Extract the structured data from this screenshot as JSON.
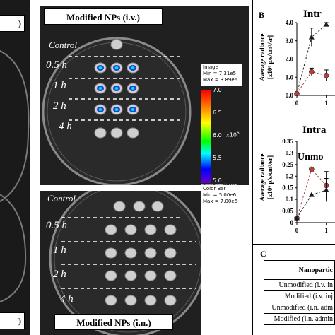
{
  "left_panel": {
    "top_label": ")",
    "bottom_label": ")"
  },
  "panel_iv": {
    "title": "Modified NPs (i.v.)",
    "time_labels": [
      "Control",
      "0.5 h",
      "1 h",
      "2 h",
      "4 h"
    ],
    "info_title": "Image",
    "info_min": "Min = 7.31e5",
    "info_max": "Max = 3.89e6",
    "colorbar_ticks": [
      "7.0",
      "6.5",
      "6.0",
      "5.5",
      "5.0"
    ],
    "colorbar_exp": "x10",
    "colorbar_exp_power": "6",
    "colorbar_unit": "p/sec/cm^2/sr",
    "colorbar_title": "Color Bar",
    "colorbar_min": "Min = 5.00e6",
    "colorbar_max": "Max = 7.00e6"
  },
  "panel_in": {
    "title": "Modified NPs (i.n.)",
    "time_labels": [
      "Control",
      "0.5 h",
      "1 h",
      "2 h",
      "4 h"
    ]
  },
  "panel_b": {
    "letter": "B",
    "top_title": "Intr",
    "bottom_title": "Intra",
    "bottom_annotation": "Unmo",
    "ylabel_line1": "Average radiance",
    "ylabel_line2": "[x10⁶ p/s/cm²/sr]"
  },
  "panel_c": {
    "letter": "C",
    "header": "Nanopartic",
    "rows": [
      "Unmodified (i.v. in",
      "Modified (i.v. inj",
      "Unmodified (i.n. adm",
      "Modified (i.n. admin"
    ]
  },
  "chart_data": [
    {
      "type": "line",
      "title": "Intr",
      "ylabel": "Average radiance [x10⁶ p/s/cm²/sr]",
      "y_ticks": [
        "0.0",
        "1.0",
        "2.0",
        "3.0",
        "4.0"
      ],
      "x_ticks": [
        "0",
        "1"
      ],
      "ylim": [
        0,
        4
      ],
      "xlim": [
        0,
        1.2
      ],
      "series": [
        {
          "marker": "triangle",
          "color": "#1a1a1a",
          "points": [
            [
              0,
              0.1
            ],
            [
              0.5,
              3.2
            ],
            [
              1,
              3.9
            ]
          ],
          "errors": [
            0,
            0.5,
            0.1
          ]
        },
        {
          "marker": "circle",
          "color": "#b0413e",
          "points": [
            [
              0,
              0.1
            ],
            [
              0.5,
              1.3
            ],
            [
              1,
              1.1
            ]
          ],
          "errors": [
            0,
            0.2,
            0.3
          ]
        }
      ]
    },
    {
      "type": "line",
      "title": "Intra",
      "annotation": "Unmo",
      "ylabel": "Average radiance [x10⁶ p/s/cm²/sr]",
      "y_ticks": [
        "0",
        "0.05",
        "0.1",
        "0.15",
        "0.2",
        "0.25",
        "0.3",
        "0.35"
      ],
      "x_ticks": [
        "0",
        "1"
      ],
      "ylim": [
        0,
        0.35
      ],
      "xlim": [
        0,
        1.2
      ],
      "series": [
        {
          "marker": "circle",
          "color": "#b0413e",
          "points": [
            [
              0,
              0.02
            ],
            [
              0.5,
              0.23
            ],
            [
              1,
              0.16
            ]
          ],
          "errors": [
            0,
            0,
            0.06
          ]
        },
        {
          "marker": "triangle",
          "color": "#1a1a1a",
          "points": [
            [
              0,
              0.02
            ],
            [
              0.5,
              0.12
            ],
            [
              1,
              0.14
            ]
          ],
          "errors": [
            0,
            0,
            0.05
          ]
        }
      ]
    }
  ]
}
